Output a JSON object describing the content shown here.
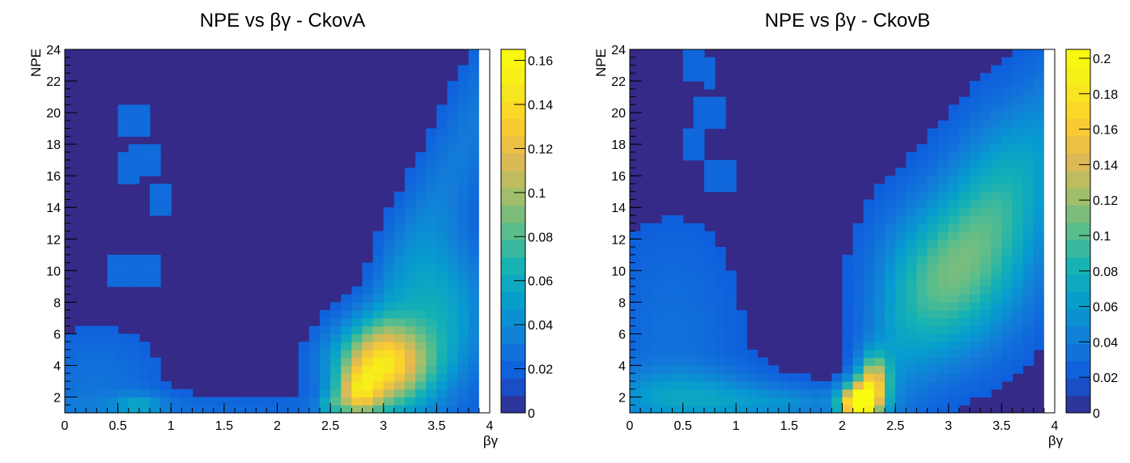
{
  "panels": [
    {
      "title": "NPE vs βγ - CkovA",
      "xlabel": "βγ",
      "ylabel": "NPE"
    },
    {
      "title": "NPE vs βγ - CkovB",
      "xlabel": "βγ",
      "ylabel": "NPE"
    }
  ],
  "chart_data": [
    {
      "type": "heatmap",
      "title": "NPE vs βγ - CkovA",
      "xlabel": "βγ",
      "ylabel": "NPE",
      "xlim": [
        0,
        4
      ],
      "ylim": [
        1,
        24
      ],
      "x_ticks": [
        0,
        0.5,
        1,
        1.5,
        2,
        2.5,
        3,
        3.5,
        4
      ],
      "x_tick_labels": [
        "0",
        "0.5",
        "1",
        "1.5",
        "2",
        "2.5",
        "3",
        "3.5",
        "4"
      ],
      "y_ticks": [
        2,
        4,
        6,
        8,
        10,
        12,
        14,
        16,
        18,
        20,
        22,
        24
      ],
      "y_tick_labels": [
        "2",
        "4",
        "6",
        "8",
        "10",
        "12",
        "14",
        "16",
        "18",
        "20",
        "22",
        "24"
      ],
      "z_range": [
        0,
        0.165
      ],
      "z_ticks": [
        0,
        0.02,
        0.04,
        0.06,
        0.08,
        0.1,
        0.12,
        0.14,
        0.16
      ],
      "z_tick_labels": [
        "0",
        "0.02",
        "0.04",
        "0.06",
        "0.08",
        "0.1",
        "0.12",
        "0.14",
        "0.16"
      ],
      "colormap": "parula",
      "x_bin_width": 0.1,
      "npe_bin_width": 1,
      "blobs": [
        {
          "x": 3.0,
          "y": 4.0,
          "sx": 0.32,
          "sy": 1.9,
          "amp": 0.13
        },
        {
          "x": 2.75,
          "y": 2.2,
          "sx": 0.14,
          "sy": 1.0,
          "amp": 0.07
        },
        {
          "x": 3.55,
          "y": 7.5,
          "sx": 0.3,
          "sy": 3.2,
          "amp": 0.045
        },
        {
          "x": 1.2,
          "y": 1.3,
          "sx": 1.5,
          "sy": 0.6,
          "amp": 0.012
        },
        {
          "x": 0.3,
          "y": 3.0,
          "sx": 0.45,
          "sy": 2.5,
          "amp": 0.016
        },
        {
          "x": 0.7,
          "y": 1.5,
          "sx": 0.15,
          "sy": 0.5,
          "amp": 0.03
        },
        {
          "x": 2.5,
          "y": 1.5,
          "sx": 0.08,
          "sy": 0.5,
          "amp": 0.03
        }
      ],
      "ridge": {
        "x0": 2.55,
        "y0": 1.0,
        "slope": 14.0,
        "width": 3.5,
        "amp": 0.02
      },
      "sparse_edges": [
        {
          "x": 0.65,
          "y": 19.5,
          "r": 0.1
        },
        {
          "x": 0.75,
          "y": 17.0,
          "r": 0.12
        },
        {
          "x": 0.9,
          "y": 14.5,
          "r": 0.1
        },
        {
          "x": 0.6,
          "y": 16.5,
          "r": 0.08
        },
        {
          "x": 0.7,
          "y": 10.0,
          "r": 0.25
        }
      ]
    },
    {
      "type": "heatmap",
      "title": "NPE vs βγ - CkovB",
      "xlabel": "βγ",
      "ylabel": "NPE",
      "xlim": [
        0,
        4
      ],
      "ylim": [
        1,
        24
      ],
      "x_ticks": [
        0,
        0.5,
        1,
        1.5,
        2,
        2.5,
        3,
        3.5,
        4
      ],
      "x_tick_labels": [
        "0",
        "0.5",
        "1",
        "1.5",
        "2",
        "2.5",
        "3",
        "3.5",
        "4"
      ],
      "y_ticks": [
        2,
        4,
        6,
        8,
        10,
        12,
        14,
        16,
        18,
        20,
        22,
        24
      ],
      "y_tick_labels": [
        "2",
        "4",
        "6",
        "8",
        "10",
        "12",
        "14",
        "16",
        "18",
        "20",
        "22",
        "24"
      ],
      "z_range": [
        0,
        0.205
      ],
      "z_ticks": [
        0,
        0.02,
        0.04,
        0.06,
        0.08,
        0.1,
        0.12,
        0.14,
        0.16,
        0.18,
        0.2
      ],
      "z_tick_labels": [
        "0",
        "0.02",
        "0.04",
        "0.06",
        "0.08",
        "0.1",
        "0.12",
        "0.14",
        "0.16",
        "0.18",
        "0.2"
      ],
      "colormap": "parula",
      "x_bin_width": 0.1,
      "npe_bin_width": 1,
      "blobs": [
        {
          "x": 2.15,
          "y": 1.6,
          "sx": 0.12,
          "sy": 0.9,
          "amp": 0.2
        },
        {
          "x": 2.3,
          "y": 3.0,
          "sx": 0.1,
          "sy": 1.2,
          "amp": 0.12
        },
        {
          "x": 3.0,
          "y": 9.5,
          "sx": 0.45,
          "sy": 3.5,
          "amp": 0.06
        },
        {
          "x": 3.5,
          "y": 14.0,
          "sx": 0.35,
          "sy": 4.0,
          "amp": 0.035
        },
        {
          "x": 0.5,
          "y": 2.0,
          "sx": 0.6,
          "sy": 1.2,
          "amp": 0.045
        },
        {
          "x": 0.4,
          "y": 6.0,
          "sx": 0.45,
          "sy": 5.0,
          "amp": 0.018
        },
        {
          "x": 1.5,
          "y": 1.6,
          "sx": 0.5,
          "sy": 0.7,
          "amp": 0.03
        }
      ],
      "ridge": {
        "x0": 2.0,
        "y0": 1.0,
        "slope": 9.0,
        "width": 4.0,
        "amp": 0.035
      },
      "sparse_edges": [
        {
          "x": 0.55,
          "y": 23.0,
          "r": 0.1
        },
        {
          "x": 0.75,
          "y": 20.0,
          "r": 0.12
        },
        {
          "x": 0.8,
          "y": 16.0,
          "r": 0.15
        },
        {
          "x": 0.6,
          "y": 18.0,
          "r": 0.1
        },
        {
          "x": 0.75,
          "y": 22.5,
          "r": 0.08
        }
      ]
    }
  ]
}
